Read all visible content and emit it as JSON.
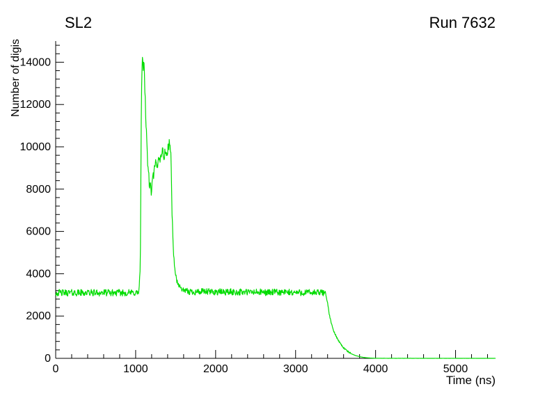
{
  "chart_data": {
    "type": "line",
    "title": "SL2",
    "annotation": "Run 7632",
    "xlabel": "Time (ns)",
    "ylabel": "Number of digis",
    "xlim": [
      0,
      5500
    ],
    "ylim": [
      0,
      15000
    ],
    "x_ticks": [
      0,
      1000,
      2000,
      3000,
      4000,
      5000
    ],
    "y_ticks": [
      0,
      2000,
      4000,
      6000,
      8000,
      10000,
      12000,
      14000
    ],
    "x_minor_step": 200,
    "y_minor_step": 400,
    "grid": false,
    "legend": "none",
    "line_color": "#00DC00",
    "axis_color": "#000000",
    "sample_step": 5,
    "seed": 42,
    "keypoints": [
      [
        0,
        3100
      ],
      [
        1040,
        3100
      ],
      [
        1058,
        4200
      ],
      [
        1072,
        12200
      ],
      [
        1085,
        14400
      ],
      [
        1095,
        13600
      ],
      [
        1105,
        14200
      ],
      [
        1115,
        12800
      ],
      [
        1130,
        11000
      ],
      [
        1150,
        9300
      ],
      [
        1170,
        8300
      ],
      [
        1195,
        7900
      ],
      [
        1220,
        8600
      ],
      [
        1250,
        9200
      ],
      [
        1270,
        9000
      ],
      [
        1290,
        9600
      ],
      [
        1310,
        9400
      ],
      [
        1330,
        9900
      ],
      [
        1350,
        9500
      ],
      [
        1370,
        9800
      ],
      [
        1390,
        9600
      ],
      [
        1410,
        10000
      ],
      [
        1428,
        10300
      ],
      [
        1442,
        9400
      ],
      [
        1455,
        7000
      ],
      [
        1470,
        5200
      ],
      [
        1490,
        4200
      ],
      [
        1512,
        3700
      ],
      [
        1545,
        3400
      ],
      [
        1585,
        3250
      ],
      [
        1625,
        3150
      ],
      [
        3375,
        3100
      ],
      [
        3400,
        2600
      ],
      [
        3420,
        2100
      ],
      [
        3450,
        1600
      ],
      [
        3480,
        1250
      ],
      [
        3520,
        950
      ],
      [
        3560,
        700
      ],
      [
        3600,
        500
      ],
      [
        3650,
        330
      ],
      [
        3700,
        210
      ],
      [
        3750,
        130
      ],
      [
        3800,
        80
      ],
      [
        3850,
        45
      ],
      [
        3900,
        25
      ],
      [
        3950,
        12
      ],
      [
        4000,
        5
      ],
      [
        4100,
        2
      ],
      [
        5500,
        0
      ]
    ],
    "noise_regions": [
      {
        "x0": 0,
        "x1": 1040,
        "amp": 160
      },
      {
        "x0": 1040,
        "x1": 1460,
        "amp": 250
      },
      {
        "x0": 1460,
        "x1": 1625,
        "amp": 110
      },
      {
        "x0": 1625,
        "x1": 3375,
        "amp": 160
      },
      {
        "x0": 3375,
        "x1": 3700,
        "amp": 40
      },
      {
        "x0": 3700,
        "x1": 5500,
        "amp": 2
      }
    ]
  }
}
